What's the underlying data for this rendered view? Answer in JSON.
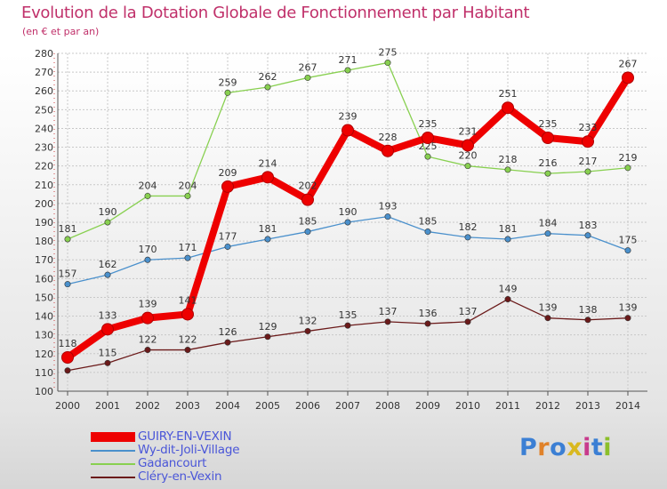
{
  "chart_data": {
    "type": "line",
    "title": "Evolution de la Dotation Globale de Fonctionnement par Habitant",
    "subtitle": "(en € et par an)",
    "x": [
      "2000",
      "2001",
      "2002",
      "2003",
      "2004",
      "2005",
      "2006",
      "2007",
      "2008",
      "2009",
      "2010",
      "2011",
      "2012",
      "2013",
      "2014"
    ],
    "ylim": [
      100,
      280
    ],
    "yticks": [
      100,
      110,
      120,
      130,
      140,
      150,
      160,
      170,
      180,
      190,
      200,
      210,
      220,
      230,
      240,
      250,
      260,
      270,
      280
    ],
    "grid": true,
    "legend_position": "bottom-left",
    "series": [
      {
        "name": "Gadancourt",
        "color": "#88d050",
        "emphasis": false,
        "values": [
          181,
          190,
          204,
          204,
          259,
          262,
          267,
          271,
          275,
          225,
          220,
          218,
          216,
          217,
          219
        ]
      },
      {
        "name": "Wy-dit-Joli-Village",
        "color": "#4a90cc",
        "emphasis": false,
        "values": [
          157,
          162,
          170,
          171,
          177,
          181,
          185,
          190,
          193,
          185,
          182,
          181,
          184,
          183,
          175
        ]
      },
      {
        "name": "Cléry-en-Vexin",
        "color": "#6b1a1a",
        "emphasis": false,
        "values": [
          111,
          115,
          122,
          122,
          126,
          129,
          132,
          135,
          137,
          136,
          137,
          149,
          139,
          138,
          139
        ]
      },
      {
        "name": "GUIRY-EN-VEXIN",
        "color": "#ee0000",
        "emphasis": true,
        "values": [
          118,
          133,
          139,
          141,
          209,
          214,
          202,
          239,
          228,
          235,
          231,
          251,
          235,
          233,
          267
        ]
      }
    ],
    "hidden_labels": {
      "Cléry-en-Vexin": [
        0
      ],
      "GUIRY-EN-VEXIN": []
    }
  },
  "legend": [
    {
      "label": "GUIRY-EN-VEXIN",
      "color": "#ee0000"
    },
    {
      "label": "Wy-dit-Joli-Village",
      "color": "#4a90cc"
    },
    {
      "label": "Gadancourt",
      "color": "#88d050"
    },
    {
      "label": "Cléry-en-Vexin",
      "color": "#6b1a1a"
    }
  ],
  "logo": {
    "text": "Proxiti"
  }
}
